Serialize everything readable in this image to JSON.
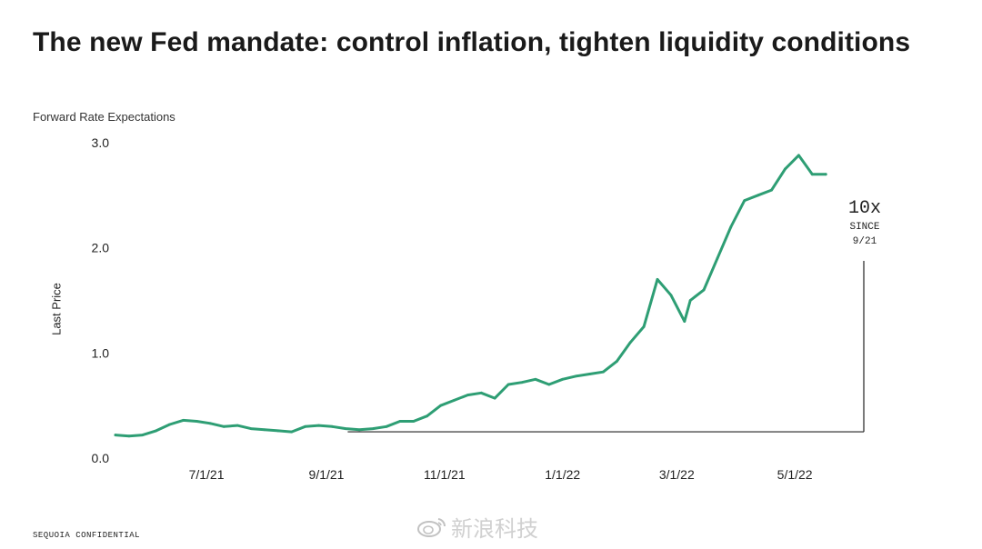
{
  "title": "The new Fed mandate: control inflation, tighten liquidity conditions",
  "footer": "SEQUOIA CONFIDENTIAL",
  "watermark": "新浪科技",
  "chart_data": {
    "type": "line",
    "subtitle": "Forward Rate Expectations",
    "ylabel": "Last Price",
    "xlabel": "",
    "ylim": [
      0.0,
      3.0
    ],
    "y_ticks": [
      0.0,
      1.0,
      2.0,
      3.0
    ],
    "y_tick_labels": [
      "0.0",
      "1.0",
      "2.0",
      "3.0"
    ],
    "x_ticks": [
      "2021-07-01",
      "2021-09-01",
      "2021-11-01",
      "2022-01-01",
      "2022-03-01",
      "2022-05-01"
    ],
    "x_tick_labels": [
      "7/1/21",
      "9/1/21",
      "11/1/21",
      "1/1/22",
      "3/1/22",
      "5/1/22"
    ],
    "xlim": [
      "2021-05-15",
      "2022-05-31"
    ],
    "grid": false,
    "line_color": "#2e9e74",
    "series": [
      {
        "values": [
          [
            "2021-05-15",
            0.22
          ],
          [
            "2021-05-22",
            0.21
          ],
          [
            "2021-05-29",
            0.22
          ],
          [
            "2021-06-05",
            0.26
          ],
          [
            "2021-06-12",
            0.32
          ],
          [
            "2021-06-19",
            0.36
          ],
          [
            "2021-06-26",
            0.35
          ],
          [
            "2021-07-03",
            0.33
          ],
          [
            "2021-07-10",
            0.3
          ],
          [
            "2021-07-17",
            0.31
          ],
          [
            "2021-07-24",
            0.28
          ],
          [
            "2021-07-31",
            0.27
          ],
          [
            "2021-08-07",
            0.26
          ],
          [
            "2021-08-14",
            0.25
          ],
          [
            "2021-08-21",
            0.3
          ],
          [
            "2021-08-28",
            0.31
          ],
          [
            "2021-09-04",
            0.3
          ],
          [
            "2021-09-11",
            0.28
          ],
          [
            "2021-09-18",
            0.27
          ],
          [
            "2021-09-25",
            0.28
          ],
          [
            "2021-10-02",
            0.3
          ],
          [
            "2021-10-09",
            0.35
          ],
          [
            "2021-10-16",
            0.35
          ],
          [
            "2021-10-23",
            0.4
          ],
          [
            "2021-10-30",
            0.5
          ],
          [
            "2021-11-06",
            0.55
          ],
          [
            "2021-11-13",
            0.6
          ],
          [
            "2021-11-20",
            0.62
          ],
          [
            "2021-11-27",
            0.57
          ],
          [
            "2021-12-04",
            0.7
          ],
          [
            "2021-12-11",
            0.72
          ],
          [
            "2021-12-18",
            0.75
          ],
          [
            "2021-12-25",
            0.7
          ],
          [
            "2022-01-01",
            0.75
          ],
          [
            "2022-01-08",
            0.78
          ],
          [
            "2022-01-15",
            0.8
          ],
          [
            "2022-01-22",
            0.82
          ],
          [
            "2022-01-29",
            0.92
          ],
          [
            "2022-02-05",
            1.1
          ],
          [
            "2022-02-12",
            1.25
          ],
          [
            "2022-02-19",
            1.7
          ],
          [
            "2022-02-26",
            1.55
          ],
          [
            "2022-03-05",
            1.3
          ],
          [
            "2022-03-08",
            1.5
          ],
          [
            "2022-03-15",
            1.6
          ],
          [
            "2022-03-22",
            1.9
          ],
          [
            "2022-03-29",
            2.2
          ],
          [
            "2022-04-05",
            2.45
          ],
          [
            "2022-04-12",
            2.5
          ],
          [
            "2022-04-19",
            2.55
          ],
          [
            "2022-04-26",
            2.75
          ],
          [
            "2022-05-03",
            2.88
          ],
          [
            "2022-05-10",
            2.7
          ],
          [
            "2022-05-17",
            2.7
          ]
        ]
      }
    ],
    "annotation": {
      "line1": "10x",
      "line2": "SINCE",
      "line3": "9/21",
      "baseline_value": 0.25
    }
  }
}
